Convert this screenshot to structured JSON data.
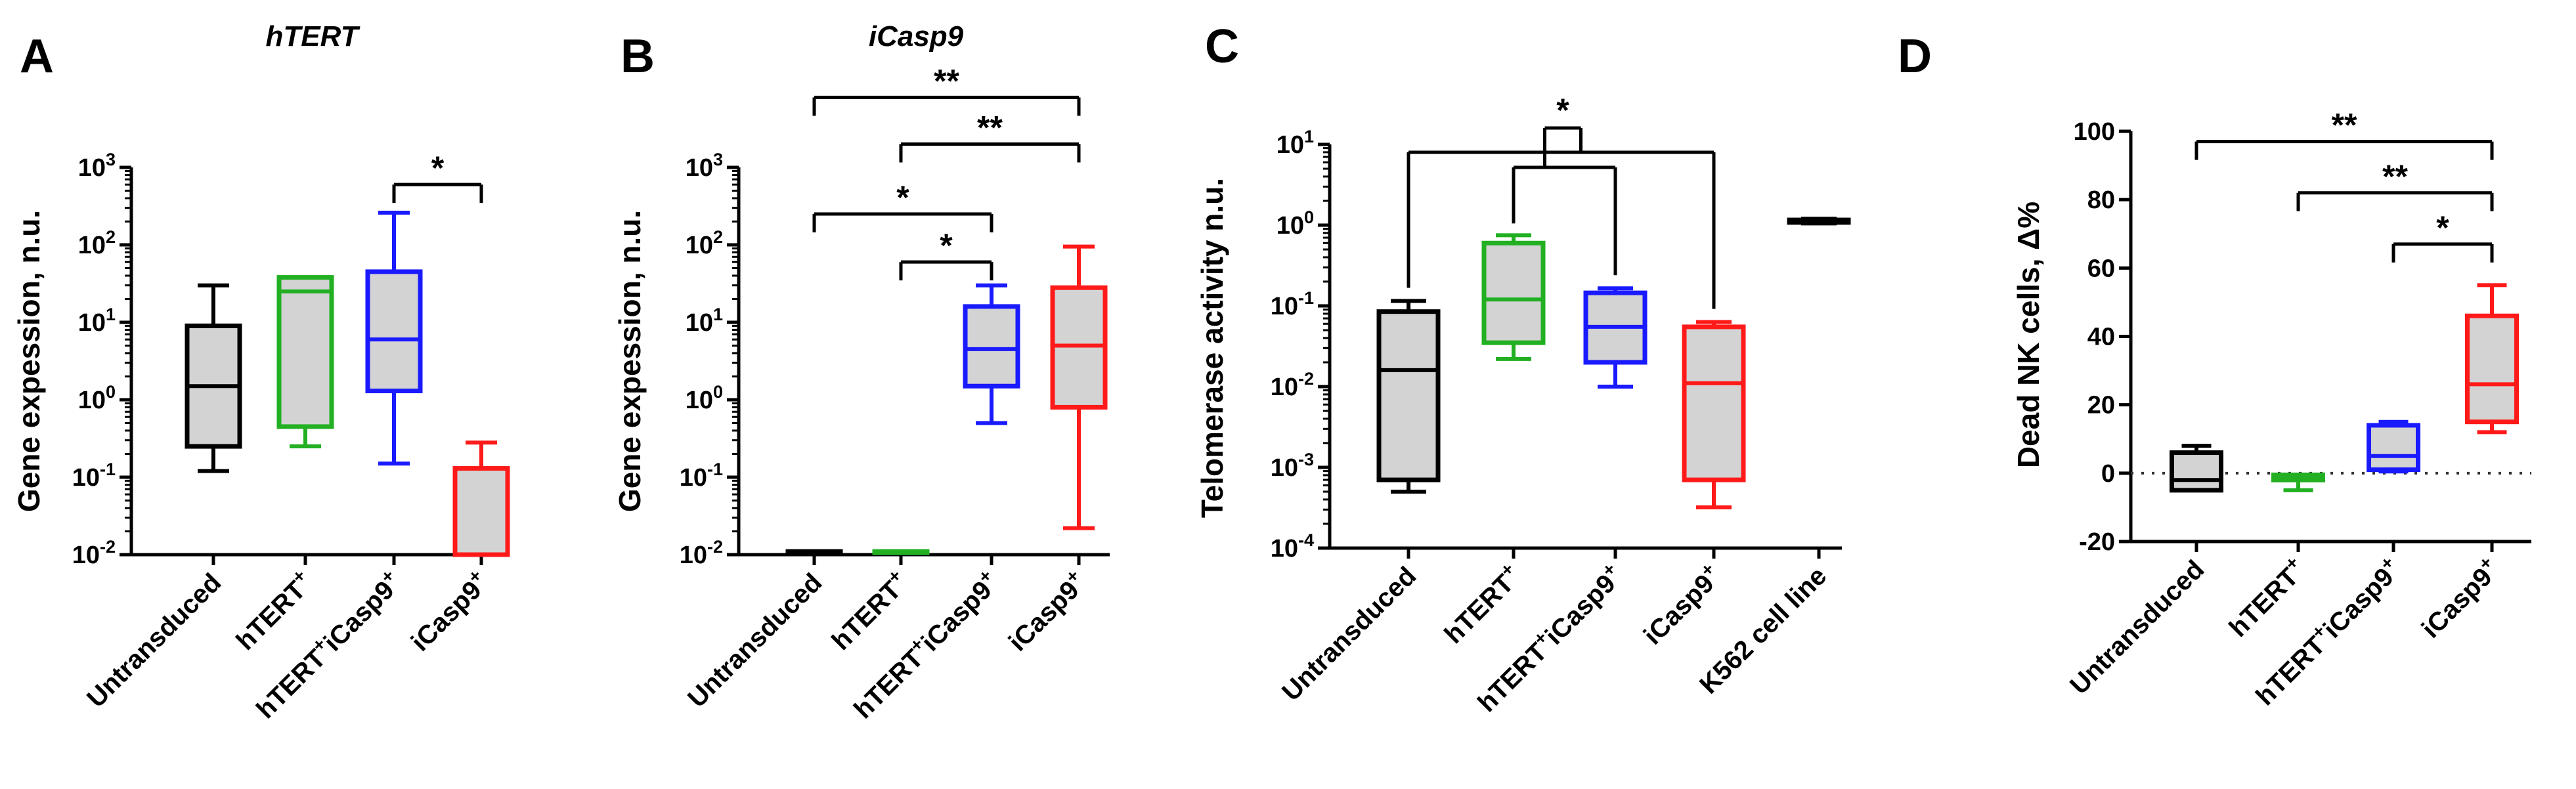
{
  "chart_data": [
    {
      "panel": "A",
      "type": "box",
      "title": "hTERT",
      "ylabel": "Gene expession, n.u.",
      "yscale": "log",
      "ylim": [
        0.01,
        1000
      ],
      "yticks": [
        {
          "value": 0.01,
          "base": "10",
          "exp": "-2"
        },
        {
          "value": 0.1,
          "base": "10",
          "exp": "-1"
        },
        {
          "value": 1,
          "base": "10",
          "exp": "0"
        },
        {
          "value": 10,
          "base": "10",
          "exp": "1"
        },
        {
          "value": 100,
          "base": "10",
          "exp": "2"
        },
        {
          "value": 1000,
          "base": "10",
          "exp": "3"
        }
      ],
      "categories": [
        {
          "name": "Untransduced",
          "sup": "",
          "color": "#000000",
          "min": 0.12,
          "q1": 0.25,
          "median": 1.5,
          "q3": 9,
          "max": 30
        },
        {
          "name": "hTERT",
          "sup": "+",
          "color": "#22b022",
          "min": 0.25,
          "q1": 0.45,
          "median": 25,
          "q3": 38,
          "max": 38
        },
        {
          "name": "hTERT+iCasp9",
          "sup": "+",
          "color": "#1a1aff",
          "min": 0.15,
          "q1": 1.3,
          "median": 6,
          "q3": 45,
          "max": 260
        },
        {
          "name": "iCasp9",
          "sup": "+",
          "color": "#ff1a1a",
          "min": 0.01,
          "q1": 0.01,
          "median": 0.01,
          "q3": 0.13,
          "max": 0.28
        }
      ],
      "significance": [
        {
          "from": 2,
          "to": 3,
          "label": "*",
          "y": 600
        }
      ]
    },
    {
      "panel": "B",
      "type": "box",
      "title": "iCasp9",
      "ylabel": "Gene expession, n.u.",
      "yscale": "log",
      "ylim": [
        0.01,
        1000
      ],
      "yticks": [
        {
          "value": 0.01,
          "base": "10",
          "exp": "-2"
        },
        {
          "value": 0.1,
          "base": "10",
          "exp": "-1"
        },
        {
          "value": 1,
          "base": "10",
          "exp": "0"
        },
        {
          "value": 10,
          "base": "10",
          "exp": "1"
        },
        {
          "value": 100,
          "base": "10",
          "exp": "2"
        },
        {
          "value": 1000,
          "base": "10",
          "exp": "3"
        }
      ],
      "categories": [
        {
          "name": "Untransduced",
          "sup": "",
          "color": "#000000",
          "min": 0.011,
          "q1": 0.011,
          "median": 0.011,
          "q3": 0.011,
          "max": 0.011
        },
        {
          "name": "hTERT",
          "sup": "+",
          "color": "#22b022",
          "min": 0.011,
          "q1": 0.011,
          "median": 0.011,
          "q3": 0.011,
          "max": 0.011
        },
        {
          "name": "hTERT+iCasp9",
          "sup": "+",
          "color": "#1a1aff",
          "min": 0.5,
          "q1": 1.5,
          "median": 4.5,
          "q3": 16,
          "max": 30
        },
        {
          "name": "iCasp9",
          "sup": "+",
          "color": "#ff1a1a",
          "min": 0.022,
          "q1": 0.8,
          "median": 5,
          "q3": 28,
          "max": 95
        }
      ],
      "significance": [
        {
          "from": 0,
          "to": 3,
          "label": "**",
          "y": 8000
        },
        {
          "from": 1,
          "to": 3,
          "label": "**",
          "y": 2000
        },
        {
          "from": 0,
          "to": 2,
          "label": "*",
          "y": 250
        },
        {
          "from": 1,
          "to": 2,
          "label": "*",
          "y": 60
        }
      ]
    },
    {
      "panel": "C",
      "type": "box",
      "title": "",
      "ylabel": "Telomerase activity n.u.",
      "yscale": "log",
      "ylim": [
        0.0001,
        10
      ],
      "yticks": [
        {
          "value": 0.0001,
          "base": "10",
          "exp": "-4"
        },
        {
          "value": 0.001,
          "base": "10",
          "exp": "-3"
        },
        {
          "value": 0.01,
          "base": "10",
          "exp": "-2"
        },
        {
          "value": 0.1,
          "base": "10",
          "exp": "-1"
        },
        {
          "value": 1,
          "base": "10",
          "exp": "0"
        },
        {
          "value": 10,
          "base": "10",
          "exp": "1"
        }
      ],
      "categories": [
        {
          "name": "Untransduced",
          "sup": "",
          "color": "#000000",
          "min": 0.0005,
          "q1": 0.0007,
          "median": 0.016,
          "q3": 0.085,
          "max": 0.115
        },
        {
          "name": "hTERT",
          "sup": "+",
          "color": "#22b022",
          "min": 0.022,
          "q1": 0.035,
          "median": 0.12,
          "q3": 0.6,
          "max": 0.75
        },
        {
          "name": "hTERT+iCasp9",
          "sup": "+",
          "color": "#1a1aff",
          "min": 0.01,
          "q1": 0.02,
          "median": 0.055,
          "q3": 0.145,
          "max": 0.165
        },
        {
          "name": "iCasp9",
          "sup": "+",
          "color": "#ff1a1a",
          "min": 0.00032,
          "q1": 0.0007,
          "median": 0.011,
          "q3": 0.055,
          "max": 0.063
        },
        {
          "name": "K562 cell line",
          "sup": "",
          "color": "#000000",
          "min": 1.05,
          "q1": 1.08,
          "median": 1.12,
          "q3": 1.16,
          "max": 1.2
        }
      ],
      "bracket": {
        "label": "*",
        "group_a": [
          0,
          3
        ],
        "group_b": [
          1,
          2
        ]
      }
    },
    {
      "panel": "D",
      "type": "box",
      "title": "",
      "ylabel": "Dead NK cells, Δ%",
      "yscale": "linear",
      "ylim": [
        -20,
        100
      ],
      "yticks": [
        {
          "value": -20,
          "label": "-20"
        },
        {
          "value": 0,
          "label": "0"
        },
        {
          "value": 20,
          "label": "20"
        },
        {
          "value": 40,
          "label": "40"
        },
        {
          "value": 60,
          "label": "60"
        },
        {
          "value": 80,
          "label": "80"
        },
        {
          "value": 100,
          "label": "100"
        }
      ],
      "zero_line": true,
      "categories": [
        {
          "name": "Untransduced",
          "sup": "",
          "color": "#000000",
          "min": -5,
          "q1": -5,
          "median": -2,
          "q3": 6,
          "max": 8
        },
        {
          "name": "hTERT",
          "sup": "+",
          "color": "#22b022",
          "min": -5,
          "q1": -2,
          "median": -1,
          "q3": -0.5,
          "max": -0.5
        },
        {
          "name": "hTERT+iCasp9",
          "sup": "+",
          "color": "#1a1aff",
          "min": 0.5,
          "q1": 1,
          "median": 5,
          "q3": 14,
          "max": 15
        },
        {
          "name": "iCasp9",
          "sup": "+",
          "color": "#ff1a1a",
          "min": 12,
          "q1": 15,
          "median": 26,
          "q3": 46,
          "max": 55
        }
      ],
      "significance": [
        {
          "from": 0,
          "to": 3,
          "label": "**",
          "y": 97
        },
        {
          "from": 1,
          "to": 3,
          "label": "**",
          "y": 82
        },
        {
          "from": 2,
          "to": 3,
          "label": "*",
          "y": 67
        }
      ]
    }
  ]
}
